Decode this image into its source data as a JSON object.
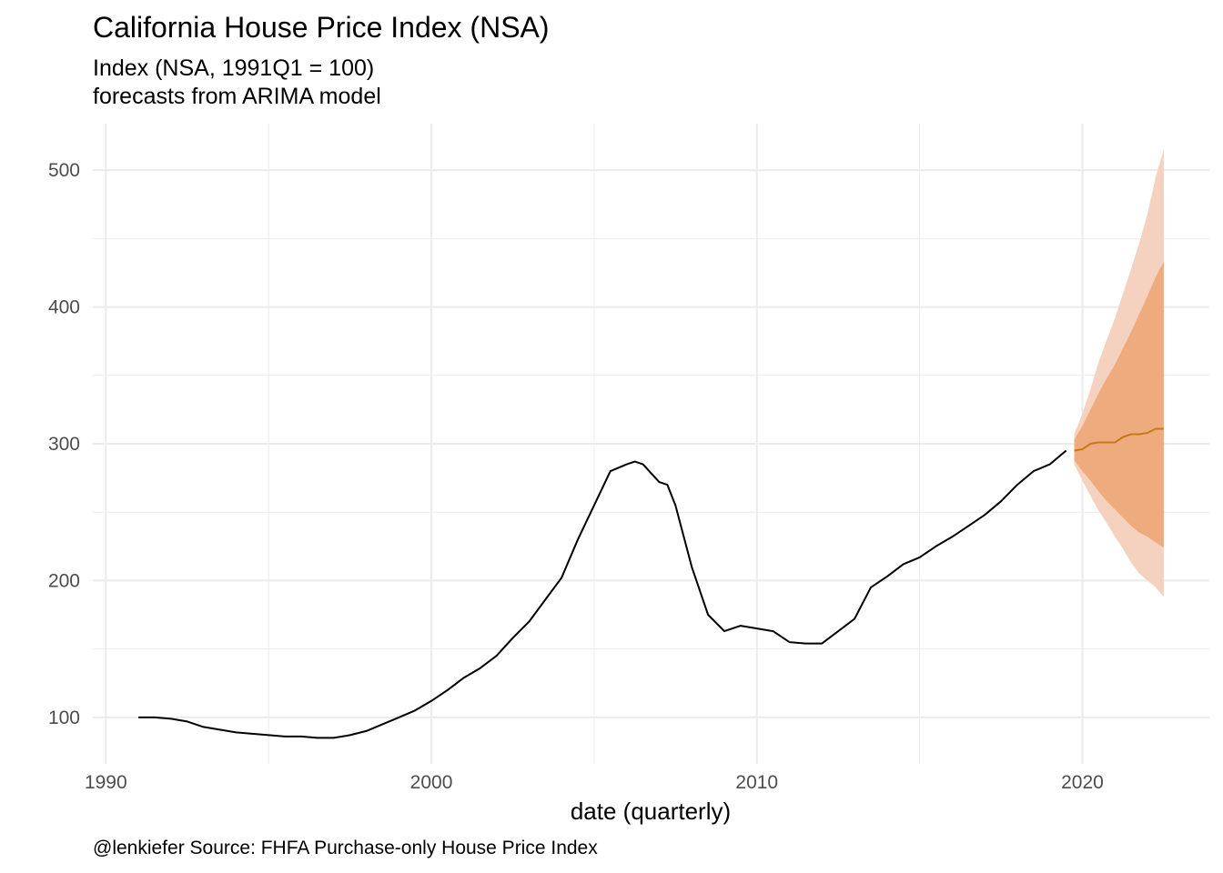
{
  "chart_data": {
    "type": "line",
    "title": "California House Price Index (NSA)",
    "subtitle_lines": [
      "Index (NSA, 1991Q1 = 100)",
      "forecasts from ARIMA model"
    ],
    "xlabel": "date (quarterly)",
    "ylabel": "",
    "caption": "@lenkiefer Source: FHFA Purchase-only House Price Index",
    "xlim": [
      1989.6,
      2023.9
    ],
    "ylim": [
      66,
      534
    ],
    "x_ticks": [
      1990,
      2000,
      2010,
      2020
    ],
    "y_ticks": [
      100,
      200,
      300,
      400,
      500
    ],
    "x_minor_ticks": [
      1995,
      2005,
      2015
    ],
    "y_minor_ticks": [
      150,
      250,
      350,
      450
    ],
    "grid": true,
    "legend": "none",
    "colors": {
      "history": "#000000",
      "forecast_line": "#c57a16",
      "band_95": "#f5d2bf",
      "band_80": "#edab7e",
      "grid": "#ebebeb"
    },
    "history": {
      "name": "actual",
      "x": [
        1991.0,
        1991.5,
        1992.0,
        1992.5,
        1993.0,
        1993.5,
        1994.0,
        1994.5,
        1995.0,
        1995.5,
        1996.0,
        1996.5,
        1997.0,
        1997.5,
        1998.0,
        1998.5,
        1999.0,
        1999.5,
        2000.0,
        2000.5,
        2001.0,
        2001.5,
        2002.0,
        2002.5,
        2003.0,
        2003.5,
        2004.0,
        2004.5,
        2005.0,
        2005.5,
        2006.0,
        2006.25,
        2006.5,
        2007.0,
        2007.25,
        2007.5,
        2008.0,
        2008.5,
        2009.0,
        2009.5,
        2010.0,
        2010.5,
        2011.0,
        2011.5,
        2012.0,
        2012.5,
        2013.0,
        2013.5,
        2014.0,
        2014.5,
        2015.0,
        2015.5,
        2016.0,
        2016.5,
        2017.0,
        2017.5,
        2018.0,
        2018.5,
        2019.0,
        2019.25,
        2019.5
      ],
      "y": [
        100,
        100,
        99,
        97,
        93,
        91,
        89,
        88,
        87,
        86,
        86,
        85,
        85,
        87,
        90,
        95,
        100,
        105,
        112,
        120,
        129,
        136,
        145,
        158,
        170,
        186,
        202,
        230,
        255,
        280,
        285,
        287,
        285,
        272,
        270,
        255,
        210,
        175,
        163,
        167,
        165,
        163,
        155,
        154,
        154,
        163,
        172,
        195,
        203,
        212,
        217,
        225,
        232,
        240,
        248,
        258,
        270,
        280,
        285,
        290,
        295
      ]
    },
    "forecast": {
      "name": "forecast",
      "x": [
        2019.75,
        2020.0,
        2020.25,
        2020.5,
        2020.75,
        2021.0,
        2021.25,
        2021.5,
        2021.75,
        2022.0,
        2022.25,
        2022.5
      ],
      "mean": [
        295,
        296,
        300,
        301,
        301,
        301,
        305,
        307,
        307,
        308,
        311,
        311
      ],
      "lo80": [
        288,
        280,
        273,
        265,
        258,
        252,
        246,
        240,
        235,
        232,
        228,
        224
      ],
      "hi80": [
        303,
        313,
        325,
        337,
        348,
        358,
        370,
        382,
        395,
        408,
        422,
        433
      ],
      "lo95": [
        285,
        273,
        262,
        251,
        242,
        232,
        223,
        213,
        205,
        200,
        195,
        188
      ],
      "hi95": [
        307,
        322,
        340,
        360,
        376,
        392,
        410,
        428,
        447,
        468,
        495,
        515
      ]
    }
  }
}
